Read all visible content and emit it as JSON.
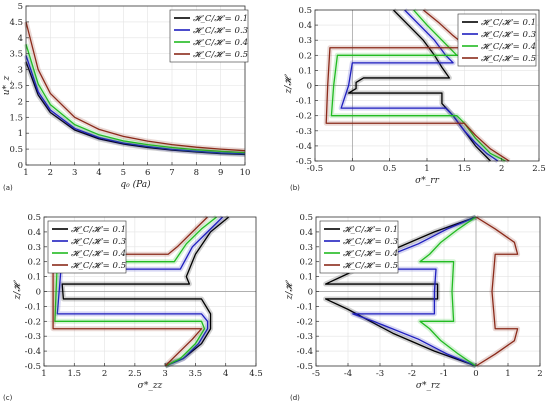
{
  "figure": {
    "panel_labels": [
      "(a)",
      "(b)",
      "(c)",
      "(d)"
    ]
  },
  "legend": {
    "entries": [
      "𝓗_C/𝓗 = 0.1",
      "𝓗_C/𝓗 = 0.3",
      "𝓗_C/𝓗 = 0.4",
      "𝓗_C/𝓗 = 0.5"
    ],
    "colors": [
      "#000000",
      "#1f1fbf",
      "#22bb22",
      "#8b2a1a"
    ]
  },
  "chart_data": [
    {
      "type": "line",
      "xlabel": "q₀ (Pa)",
      "ylabel": "u*_z",
      "xlim": [
        1,
        10
      ],
      "ylim": [
        0,
        5
      ],
      "xticks": [
        1,
        2,
        3,
        4,
        5,
        6,
        7,
        8,
        9,
        10
      ],
      "yticks": [
        0,
        0.5,
        1,
        1.5,
        2,
        2.5,
        3,
        3.5,
        4,
        4.5,
        5
      ],
      "grid": true,
      "legend_position": "top-right",
      "series": [
        {
          "name": "𝓗_C/𝓗 = 0.1",
          "x": [
            1,
            1.5,
            2,
            3,
            4,
            5,
            6,
            7,
            8,
            9,
            10
          ],
          "y": [
            3.25,
            2.2,
            1.65,
            1.1,
            0.82,
            0.66,
            0.55,
            0.47,
            0.41,
            0.36,
            0.33
          ]
        },
        {
          "name": "𝓗_C/𝓗 = 0.3",
          "x": [
            1,
            1.5,
            2,
            3,
            4,
            5,
            6,
            7,
            8,
            9,
            10
          ],
          "y": [
            3.45,
            2.3,
            1.73,
            1.15,
            0.86,
            0.69,
            0.58,
            0.49,
            0.43,
            0.38,
            0.35
          ]
        },
        {
          "name": "𝓗_C/𝓗 = 0.4",
          "x": [
            1,
            1.5,
            2,
            3,
            4,
            5,
            6,
            7,
            8,
            9,
            10
          ],
          "y": [
            3.8,
            2.55,
            1.9,
            1.27,
            0.95,
            0.76,
            0.64,
            0.55,
            0.48,
            0.43,
            0.39
          ]
        },
        {
          "name": "𝓗_C/𝓗 = 0.5",
          "x": [
            1,
            1.5,
            2,
            3,
            4,
            5,
            6,
            7,
            8,
            9,
            10
          ],
          "y": [
            4.5,
            3.0,
            2.25,
            1.5,
            1.12,
            0.9,
            0.75,
            0.64,
            0.56,
            0.5,
            0.45
          ]
        }
      ]
    },
    {
      "type": "line",
      "xlabel": "σ*_rr",
      "ylabel": "z/𝓗",
      "xlim": [
        -0.5,
        2.5
      ],
      "ylim": [
        -0.5,
        0.5
      ],
      "xticks": [
        -0.5,
        0,
        0.5,
        1,
        1.5,
        2,
        2.5
      ],
      "yticks": [
        -0.5,
        -0.4,
        -0.3,
        -0.2,
        -0.1,
        0,
        0.1,
        0.2,
        0.3,
        0.4,
        0.5
      ],
      "grid": true,
      "legend_position": "top-right",
      "series": [
        {
          "name": "𝓗_C/𝓗 = 0.1",
          "x": [
            0.55,
            0.75,
            0.95,
            1.1,
            1.2,
            1.3,
            1.3,
            0.15,
            0.05,
            0.05,
            -0.05,
            1.2,
            1.2,
            1.35,
            1.5,
            1.65,
            1.85
          ],
          "y": [
            0.5,
            0.4,
            0.3,
            0.2,
            0.12,
            0.05,
            0.05,
            0.05,
            0.02,
            -0.02,
            -0.05,
            -0.05,
            -0.12,
            -0.2,
            -0.3,
            -0.4,
            -0.5
          ]
        },
        {
          "name": "𝓗_C/𝓗 = 0.3",
          "x": [
            0.7,
            0.9,
            1.1,
            1.25,
            1.35,
            1.35,
            0.0,
            -0.05,
            -0.15,
            1.25,
            1.35,
            1.5,
            1.65,
            1.8,
            1.95
          ],
          "y": [
            0.5,
            0.4,
            0.3,
            0.2,
            0.15,
            0.15,
            0.15,
            0.0,
            -0.15,
            -0.15,
            -0.2,
            -0.3,
            -0.38,
            -0.45,
            -0.5
          ]
        },
        {
          "name": "𝓗_C/𝓗 = 0.4",
          "x": [
            0.82,
            1.0,
            1.2,
            1.4,
            1.45,
            -0.2,
            -0.25,
            -0.28,
            1.4,
            1.5,
            1.65,
            1.85,
            2.05
          ],
          "y": [
            0.5,
            0.4,
            0.3,
            0.2,
            0.2,
            0.2,
            0.0,
            -0.2,
            -0.2,
            -0.25,
            -0.35,
            -0.45,
            -0.5
          ]
        },
        {
          "name": "𝓗_C/𝓗 = 0.5",
          "x": [
            0.95,
            1.15,
            1.35,
            1.55,
            1.55,
            -0.3,
            -0.33,
            -0.35,
            1.5,
            1.65,
            1.85,
            2.1
          ],
          "y": [
            0.5,
            0.42,
            0.33,
            0.25,
            0.25,
            0.25,
            0.0,
            -0.25,
            -0.25,
            -0.33,
            -0.42,
            -0.5
          ]
        }
      ]
    },
    {
      "type": "line",
      "xlabel": "σ*_zz",
      "ylabel": "z/𝓗",
      "xlim": [
        1,
        4.5
      ],
      "ylim": [
        -0.5,
        0.5
      ],
      "xticks": [
        1,
        1.5,
        2,
        2.5,
        3,
        3.5,
        4,
        4.5
      ],
      "yticks": [
        -0.5,
        -0.4,
        -0.3,
        -0.2,
        -0.1,
        0,
        0.1,
        0.2,
        0.3,
        0.4,
        0.5
      ],
      "grid": true,
      "legend_position": "top-left",
      "series": [
        {
          "name": "𝓗_C/𝓗 = 0.1",
          "x": [
            4.05,
            3.75,
            3.5,
            3.35,
            3.4,
            1.3,
            1.32,
            3.6,
            3.75,
            3.75,
            3.6,
            3.3,
            3.0
          ],
          "y": [
            0.5,
            0.4,
            0.25,
            0.1,
            0.05,
            0.05,
            -0.05,
            -0.05,
            -0.15,
            -0.25,
            -0.35,
            -0.45,
            -0.5
          ]
        },
        {
          "name": "𝓗_C/𝓗 = 0.3",
          "x": [
            3.95,
            3.7,
            3.45,
            3.25,
            1.28,
            1.22,
            3.6,
            3.7,
            3.7,
            3.55,
            3.3,
            3.0
          ],
          "y": [
            0.5,
            0.4,
            0.3,
            0.15,
            0.15,
            -0.15,
            -0.15,
            -0.2,
            -0.25,
            -0.35,
            -0.45,
            -0.5
          ]
        },
        {
          "name": "𝓗_C/𝓗 = 0.4",
          "x": [
            3.85,
            3.6,
            3.35,
            3.15,
            1.22,
            1.18,
            3.6,
            3.65,
            3.5,
            3.25,
            3.0
          ],
          "y": [
            0.5,
            0.42,
            0.32,
            0.2,
            0.2,
            -0.2,
            -0.2,
            -0.25,
            -0.35,
            -0.45,
            -0.5
          ]
        },
        {
          "name": "𝓗_C/𝓗 = 0.5",
          "x": [
            3.7,
            3.45,
            3.2,
            3.05,
            1.15,
            1.15,
            3.6,
            3.45,
            3.2,
            3.0
          ],
          "y": [
            0.5,
            0.4,
            0.3,
            0.25,
            0.25,
            -0.25,
            -0.25,
            -0.32,
            -0.42,
            -0.5
          ]
        }
      ]
    },
    {
      "type": "line",
      "xlabel": "σ*_rz",
      "ylabel": "z/𝓗",
      "xlim": [
        -5,
        2
      ],
      "ylim": [
        -0.5,
        0.5
      ],
      "xticks": [
        -5,
        -4,
        -3,
        -2,
        -1,
        0,
        1,
        2
      ],
      "yticks": [
        -0.5,
        -0.4,
        -0.3,
        -0.2,
        -0.1,
        0,
        0.1,
        0.2,
        0.3,
        0.4,
        0.5
      ],
      "grid": true,
      "legend_position": "top-left",
      "series": [
        {
          "name": "𝓗_C/𝓗 = 0.1",
          "x": [
            0,
            -1.3,
            -2.6,
            -4.0,
            -4.7,
            -4.7,
            -1.2,
            -1.2,
            -4.7,
            -4.7,
            -4.0,
            -2.6,
            -1.3,
            0
          ],
          "y": [
            0.5,
            0.4,
            0.28,
            0.12,
            0.05,
            0.05,
            0.05,
            -0.05,
            -0.05,
            -0.05,
            -0.12,
            -0.28,
            -0.4,
            -0.5
          ]
        },
        {
          "name": "𝓗_C/𝓗 = 0.3",
          "x": [
            0,
            -0.9,
            -1.8,
            -3.2,
            -3.85,
            -3.85,
            -1.25,
            -1.3,
            -1.3,
            -3.85,
            -3.85,
            -3.2,
            -1.8,
            -0.9,
            0
          ],
          "y": [
            0.5,
            0.42,
            0.32,
            0.2,
            0.15,
            0.15,
            0.15,
            0.0,
            -0.15,
            -0.15,
            -0.15,
            -0.2,
            -0.32,
            -0.42,
            -0.5
          ]
        },
        {
          "name": "𝓗_C/𝓗 = 0.4",
          "x": [
            0,
            -0.55,
            -1.1,
            -1.45,
            -1.75,
            -1.75,
            -0.7,
            -0.75,
            -0.7,
            -1.75,
            -1.75,
            -1.45,
            -1.1,
            -0.55,
            0
          ],
          "y": [
            0.5,
            0.42,
            0.33,
            0.25,
            0.2,
            0.2,
            0.2,
            0.0,
            -0.2,
            -0.2,
            -0.2,
            -0.25,
            -0.33,
            -0.42,
            -0.5
          ]
        },
        {
          "name": "𝓗_C/𝓗 = 0.5",
          "x": [
            0,
            0.6,
            1.2,
            1.3,
            0.6,
            0.5,
            0.6,
            1.3,
            1.2,
            0.6,
            0
          ],
          "y": [
            0.5,
            0.42,
            0.33,
            0.25,
            0.25,
            0.0,
            -0.25,
            -0.25,
            -0.33,
            -0.42,
            -0.5
          ]
        }
      ]
    }
  ]
}
